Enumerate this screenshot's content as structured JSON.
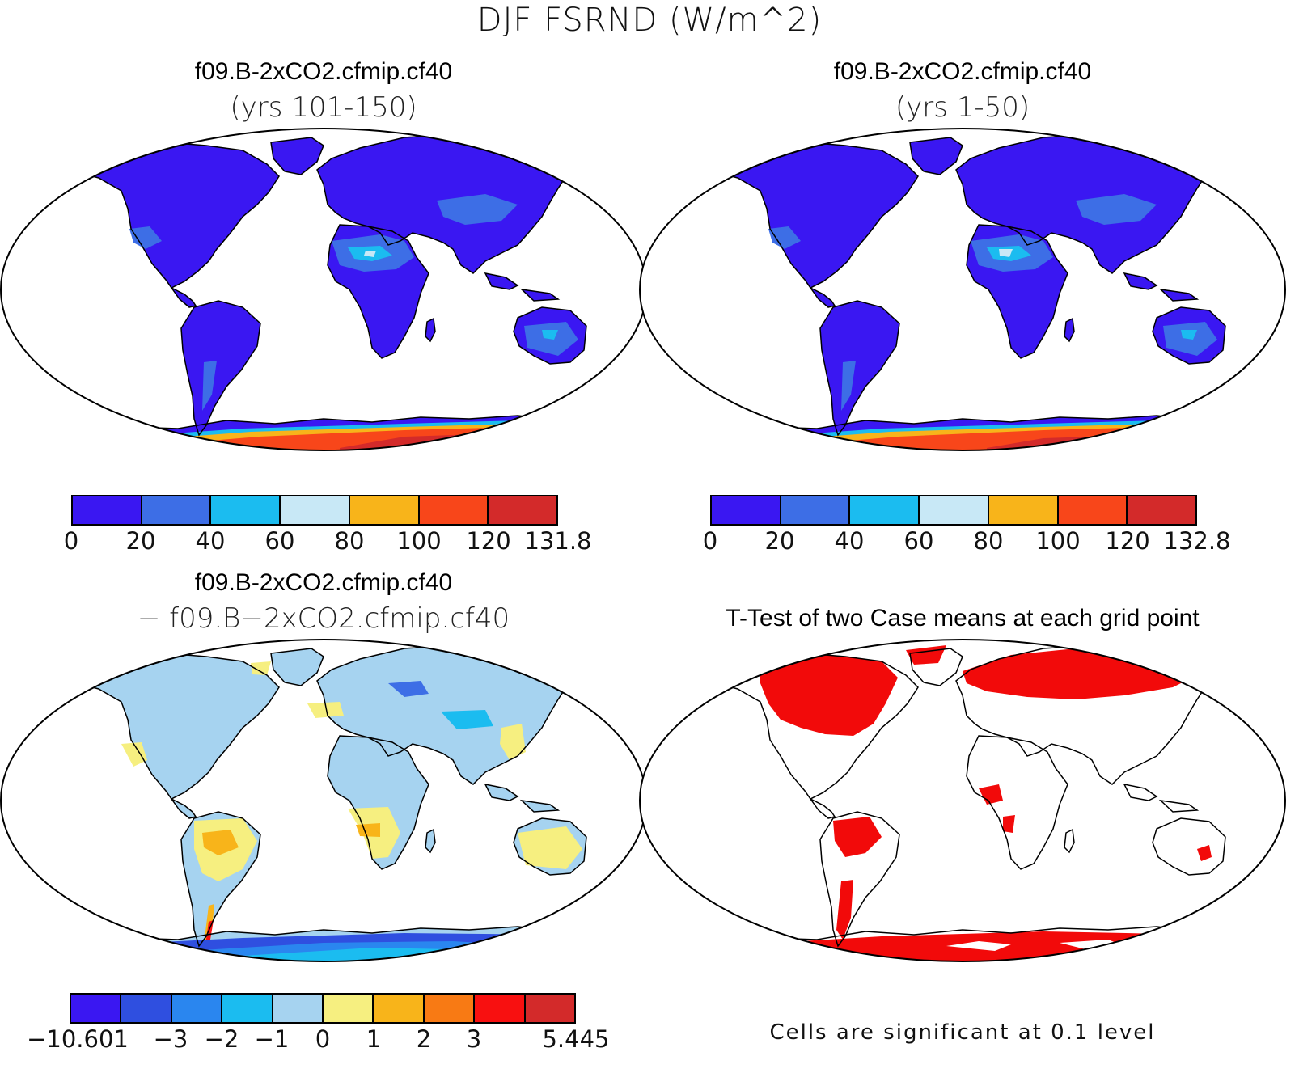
{
  "figure": {
    "title": "DJF FSRND (W/m^2)"
  },
  "panels": {
    "top_left": {
      "title": "f09.B-2xCO2.cfmip.cf40",
      "subtitle": "(yrs 101-150)",
      "colorbar": {
        "colors": [
          "#3a17f2",
          "#3d6ee6",
          "#1bbcf0",
          "#c8e8f6",
          "#f8b41a",
          "#f8461a",
          "#d32a2a"
        ],
        "ticks": [
          "0",
          "20",
          "40",
          "60",
          "80",
          "100",
          "120",
          "131.8"
        ]
      }
    },
    "top_right": {
      "title": "f09.B-2xCO2.cfmip.cf40",
      "subtitle": "(yrs 1-50)",
      "colorbar": {
        "colors": [
          "#3a17f2",
          "#3d6ee6",
          "#1bbcf0",
          "#c8e8f6",
          "#f8b41a",
          "#f8461a",
          "#d32a2a"
        ],
        "ticks": [
          "0",
          "20",
          "40",
          "60",
          "80",
          "100",
          "120",
          "132.8"
        ]
      }
    },
    "bottom_left": {
      "title": "f09.B-2xCO2.cfmip.cf40",
      "subtitle": "− f09.B−2xCO2.cfmip.cf40",
      "colorbar": {
        "colors": [
          "#3a17f2",
          "#2f4fe0",
          "#2a86ef",
          "#1bbcf0",
          "#a6d3f0",
          "#f6ef80",
          "#f8b41a",
          "#f87a14",
          "#f81010",
          "#d32a2a"
        ],
        "ticks": [
          "−10.601",
          "−3",
          "−2",
          "−1",
          "0",
          "1",
          "2",
          "3",
          "5.445"
        ]
      }
    },
    "bottom_right": {
      "title": "T-Test of two Case means at each grid point",
      "footnote": "Cells are significant at 0.1 level",
      "colors": {
        "significant": "#f20a0a"
      }
    }
  }
}
